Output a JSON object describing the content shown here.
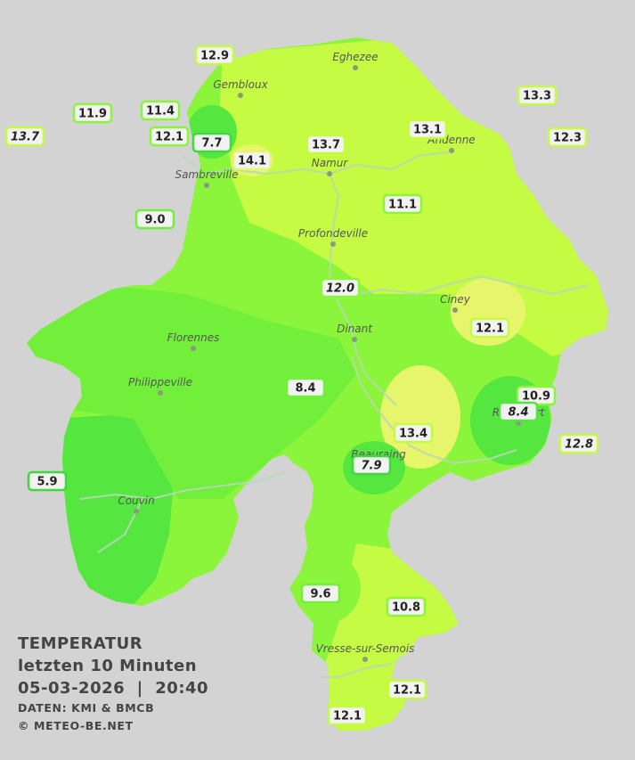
{
  "legend": {
    "title": "TEMPERATUR",
    "subtitle": "letzten 10 Minuten",
    "datetime": "05-03-2026  |  20:40",
    "source": "DATEN: KMI & BMCB",
    "copyright": "© METEO-BE.NET"
  },
  "colors": {
    "background": "#d3d3d3",
    "cool": "#55e640",
    "mild": "#8af53a",
    "warm": "#c5fb42",
    "warmer": "#e6f56a",
    "river": "#b8d4b8"
  },
  "towns": [
    {
      "name": "Eghezee"
    },
    {
      "name": "Gembloux"
    },
    {
      "name": "Andenne"
    },
    {
      "name": "Namur"
    },
    {
      "name": "Sambreville"
    },
    {
      "name": "Profondeville"
    },
    {
      "name": "Ciney"
    },
    {
      "name": "Dinant"
    },
    {
      "name": "Florennes"
    },
    {
      "name": "Philippeville"
    },
    {
      "name": "Rochefort"
    },
    {
      "name": "Beauraing"
    },
    {
      "name": "Couvin"
    },
    {
      "name": "Vresse-sur-Semois"
    }
  ],
  "stations": [
    {
      "value": "12.9",
      "italic": false
    },
    {
      "value": "13.3",
      "italic": false
    },
    {
      "value": "11.9",
      "italic": false
    },
    {
      "value": "11.4",
      "italic": false
    },
    {
      "value": "13.7",
      "italic": true
    },
    {
      "value": "12.1",
      "italic": false
    },
    {
      "value": "7.7",
      "italic": false
    },
    {
      "value": "13.1",
      "italic": false
    },
    {
      "value": "12.3",
      "italic": false
    },
    {
      "value": "14.1",
      "italic": false
    },
    {
      "value": "13.7",
      "italic": false
    },
    {
      "value": "9.0",
      "italic": false
    },
    {
      "value": "11.1",
      "italic": false
    },
    {
      "value": "12.0",
      "italic": true
    },
    {
      "value": "12.1",
      "italic": false
    },
    {
      "value": "8.4",
      "italic": false
    },
    {
      "value": "10.9",
      "italic": false
    },
    {
      "value": "8.4",
      "italic": true
    },
    {
      "value": "13.4",
      "italic": false
    },
    {
      "value": "12.8",
      "italic": true
    },
    {
      "value": "7.9",
      "italic": true
    },
    {
      "value": "5.9",
      "italic": false
    },
    {
      "value": "9.6",
      "italic": false
    },
    {
      "value": "10.8",
      "italic": false
    },
    {
      "value": "12.1",
      "italic": false
    },
    {
      "value": "12.1",
      "italic": false
    }
  ]
}
